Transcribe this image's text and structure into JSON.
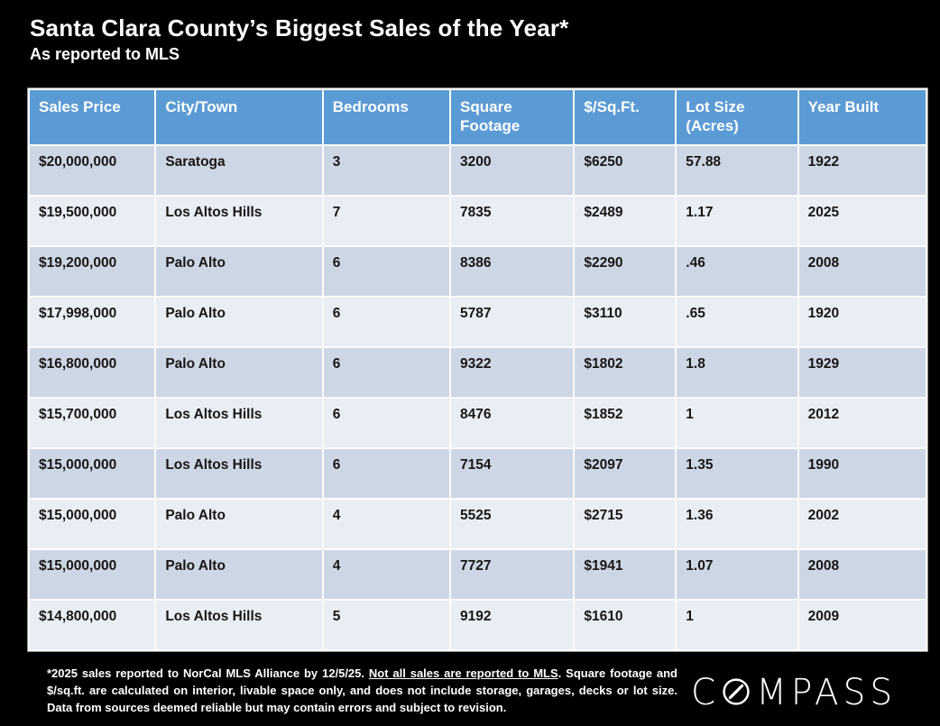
{
  "page": {
    "title": "Santa Clara County’s Biggest Sales of the Year*",
    "subtitle": "As reported to MLS"
  },
  "table": {
    "columns": [
      "Sales Price",
      "City/Town",
      "Bedrooms",
      "Square Footage",
      "$/Sq.Ft.",
      "Lot Size (Acres)",
      "Year Built"
    ],
    "rows": [
      [
        "$20,000,000",
        "Saratoga",
        "3",
        "3200",
        "$6250",
        "57.88",
        "1922"
      ],
      [
        "$19,500,000",
        "Los Altos Hills",
        "7",
        "7835",
        "$2489",
        "1.17",
        "2025"
      ],
      [
        "$19,200,000",
        "Palo Alto",
        "6",
        "8386",
        "$2290",
        ".46",
        "2008"
      ],
      [
        "$17,998,000",
        "Palo Alto",
        "6",
        "5787",
        "$3110",
        ".65",
        "1920"
      ],
      [
        "$16,800,000",
        "Palo Alto",
        "6",
        "9322",
        "$1802",
        "1.8",
        "1929"
      ],
      [
        "$15,700,000",
        "Los Altos Hills",
        "6",
        "8476",
        "$1852",
        "1",
        "2012"
      ],
      [
        "$15,000,000",
        "Los Altos Hills",
        "6",
        "7154",
        "$2097",
        "1.35",
        "1990"
      ],
      [
        "$15,000,000",
        "Palo Alto",
        "4",
        "5525",
        "$2715",
        "1.36",
        "2002"
      ],
      [
        "$15,000,000",
        "Palo Alto",
        "4",
        "7727",
        "$1941",
        "1.07",
        "2008"
      ],
      [
        "$14,800,000",
        "Los Altos Hills",
        "5",
        "9192",
        "$1610",
        "1",
        "2009"
      ]
    ]
  },
  "footnote": {
    "part1": "*2025 sales reported to NorCal MLS Alliance by 12/5/25. ",
    "underlined": "Not all sales are reported to MLS",
    "part2": ". Square footage and $/sq.ft. are calculated on interior, livable space only, and does not include storage, garages, decks or lot size. Data from sources deemed reliable but may contain errors and subject to revision."
  },
  "logo": {
    "brand": "COMPASS",
    "first_letter": "C",
    "rest_letters": "MPASS"
  },
  "colors": {
    "header_bg": "#5B9BD5",
    "row_odd": "#CDD6E4",
    "row_even": "#E9EDF4",
    "background": "#000000",
    "header_text": "#FFFFFF",
    "body_text": "#161616"
  }
}
